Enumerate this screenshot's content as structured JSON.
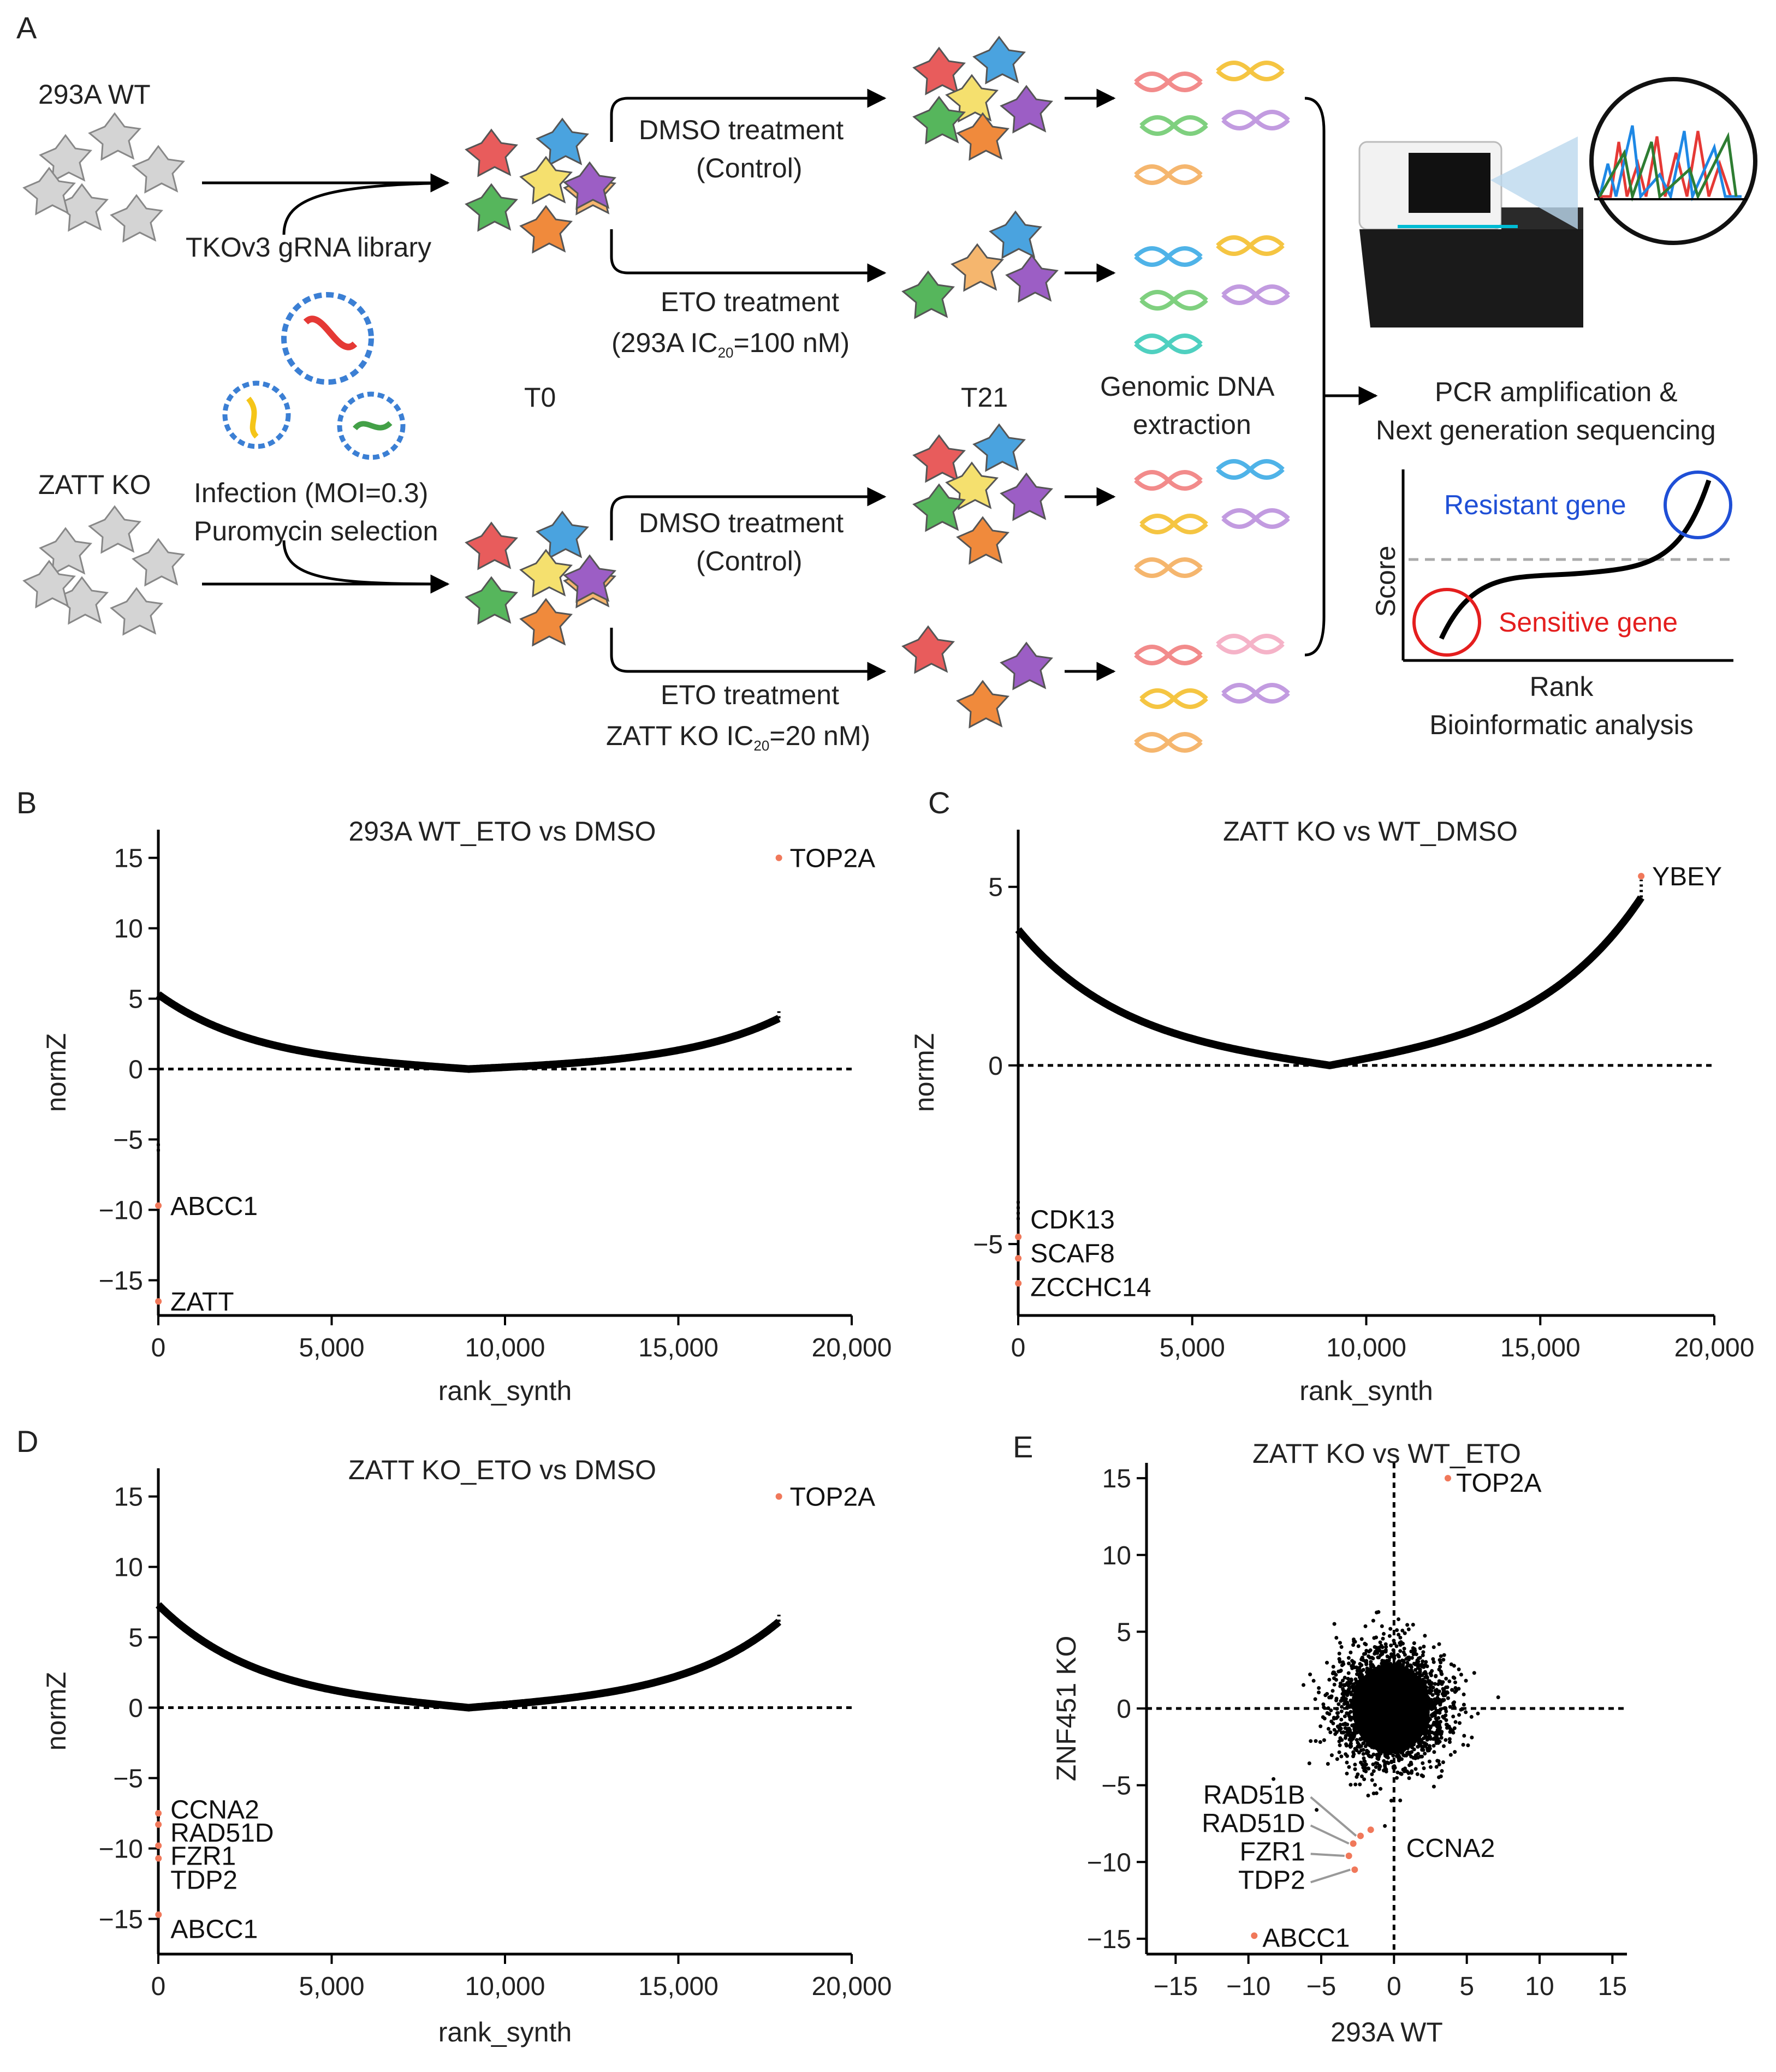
{
  "panels": {
    "A": "A",
    "B": "B",
    "C": "C",
    "D": "D",
    "E": "E"
  },
  "schematic": {
    "wt_label": "293A WT",
    "ko_label": "ZATT KO",
    "library": "TKOv3 gRNA library",
    "infection": "Infection (MOI=0.3)",
    "selection": "Puromycin selection",
    "t0": "T0",
    "t21": "T21",
    "dmso1": "DMSO treatment",
    "control1": "(Control)",
    "eto1": "ETO treatment",
    "eto1_ic_pre": "(293A IC",
    "eto1_ic_sub": "20",
    "eto1_ic_post": "=100 nM)",
    "dmso2": "DMSO treatment",
    "control2": "(Control)",
    "eto2": "ETO treatment",
    "eto2_ic_pre": "ZATT KO IC",
    "eto2_ic_sub": "20",
    "eto2_ic_post": "=20 nM)",
    "gdna1": "Genomic DNA",
    "gdna2": "extraction",
    "pcr1": "PCR amplification &",
    "pcr2": "Next generation sequencing",
    "resistant": "Resistant gene",
    "sensitive": "Sensitive gene",
    "score": "Score",
    "rank": "Rank",
    "bioinfo": "Bioinformatic analysis"
  },
  "colors": {
    "highlight": "#f0785a",
    "resistant": "#1f4fd6",
    "sensitive": "#e41e1e",
    "points": "#000000"
  },
  "chart_data": [
    {
      "id": "B",
      "type": "scatter",
      "title": "293A WT_ETO vs DMSO",
      "xlabel": "rank_synth",
      "ylabel": "normZ",
      "xlim": [
        0,
        20000
      ],
      "ylim": [
        -17.5,
        17
      ],
      "xticks": [
        0,
        5000,
        10000,
        15000,
        20000
      ],
      "xtick_labels": [
        "0",
        "5,000",
        "10,000",
        "15,000",
        "20,000"
      ],
      "yticks": [
        -15,
        -10,
        -5,
        0,
        5,
        10,
        15
      ],
      "ytick_labels": [
        "−15",
        "−10",
        "−5",
        "0",
        "5",
        "10",
        "15"
      ],
      "n_genes": 17900,
      "curve": {
        "lo": -5.3,
        "hi": 3.6,
        "span": 6
      },
      "labels": [
        {
          "gene": "TOP2A",
          "x": 17900,
          "y": 15
        },
        {
          "gene": "ABCC1",
          "x": 1,
          "y": -9.7
        },
        {
          "gene": "ZATT",
          "x": 2,
          "y": -16.5
        }
      ]
    },
    {
      "id": "C",
      "type": "scatter",
      "title": "ZATT KO vs WT_DMSO",
      "xlabel": "rank_synth",
      "ylabel": "normZ",
      "xlim": [
        0,
        20000
      ],
      "ylim": [
        -7,
        6.6
      ],
      "xticks": [
        0,
        5000,
        10000,
        15000,
        20000
      ],
      "xtick_labels": [
        "0",
        "5,000",
        "10,000",
        "15,000",
        "20,000"
      ],
      "yticks": [
        -5,
        0,
        5
      ],
      "ytick_labels": [
        "−5",
        "0",
        "5"
      ],
      "n_genes": 17900,
      "curve": {
        "lo": -3.8,
        "hi": 4.7,
        "span": 5.5
      },
      "labels": [
        {
          "gene": "YBEY",
          "x": 17900,
          "y": 5.3
        },
        {
          "gene": "CDK13",
          "x": 2,
          "y": -4.8
        },
        {
          "gene": "SCAF8",
          "x": 1,
          "y": -5.4
        },
        {
          "gene": "ZCCHC14",
          "x": 3,
          "y": -6.1
        }
      ]
    },
    {
      "id": "D",
      "type": "scatter",
      "title": "ZATT KO_ETO vs DMSO",
      "xlabel": "rank_synth",
      "ylabel": "normZ",
      "xlim": [
        0,
        20000
      ],
      "ylim": [
        -17.5,
        17
      ],
      "xticks": [
        0,
        5000,
        10000,
        15000,
        20000
      ],
      "xtick_labels": [
        "0",
        "5,000",
        "10,000",
        "15,000",
        "20,000"
      ],
      "yticks": [
        -15,
        -10,
        -5,
        0,
        5,
        10,
        15
      ],
      "ytick_labels": [
        "−15",
        "−10",
        "−5",
        "0",
        "5",
        "10",
        "15"
      ],
      "n_genes": 17900,
      "curve": {
        "lo": -7.3,
        "hi": 6.1,
        "span": 6
      },
      "labels": [
        {
          "gene": "TOP2A",
          "x": 17900,
          "y": 15
        },
        {
          "gene": "CCNA2",
          "x": 1,
          "y": -7.5
        },
        {
          "gene": "RAD51D",
          "x": 2,
          "y": -8.3
        },
        {
          "gene": "FZR1",
          "x": 3,
          "y": -9.8
        },
        {
          "gene": "TDP2",
          "x": 4,
          "y": -10.7
        },
        {
          "gene": "ABCC1",
          "x": 5,
          "y": -14.7
        }
      ]
    },
    {
      "id": "E",
      "type": "scatter",
      "title": "ZATT KO vs WT_ETO",
      "xlabel": "293A WT",
      "ylabel": "ZNF451 KO",
      "xlim": [
        -17,
        16
      ],
      "ylim": [
        -16,
        16
      ],
      "xticks": [
        -15,
        -10,
        -5,
        0,
        5,
        10,
        15
      ],
      "xtick_labels": [
        "−15",
        "−10",
        "−5",
        "0",
        "5",
        "10",
        "15"
      ],
      "yticks": [
        -15,
        -10,
        -5,
        0,
        5,
        10,
        15
      ],
      "ytick_labels": [
        "−15",
        "−10",
        "−5",
        "0",
        "5",
        "10",
        "15"
      ],
      "cloud": {
        "cx": -0.2,
        "cy": 0,
        "sx": 1.4,
        "sy": 1.4,
        "n": 2500
      },
      "labels": [
        {
          "gene": "TOP2A",
          "x": 3.7,
          "y": 15
        },
        {
          "gene": "RAD51B",
          "x": -2.3,
          "y": -8.3
        },
        {
          "gene": "RAD51D",
          "x": -2.8,
          "y": -8.8
        },
        {
          "gene": "FZR1",
          "x": -3.1,
          "y": -9.6
        },
        {
          "gene": "TDP2",
          "x": -2.7,
          "y": -10.5
        },
        {
          "gene": "CCNA2",
          "x": -1.6,
          "y": -7.9
        },
        {
          "gene": "ABCC1",
          "x": -9.6,
          "y": -14.8
        }
      ]
    }
  ]
}
